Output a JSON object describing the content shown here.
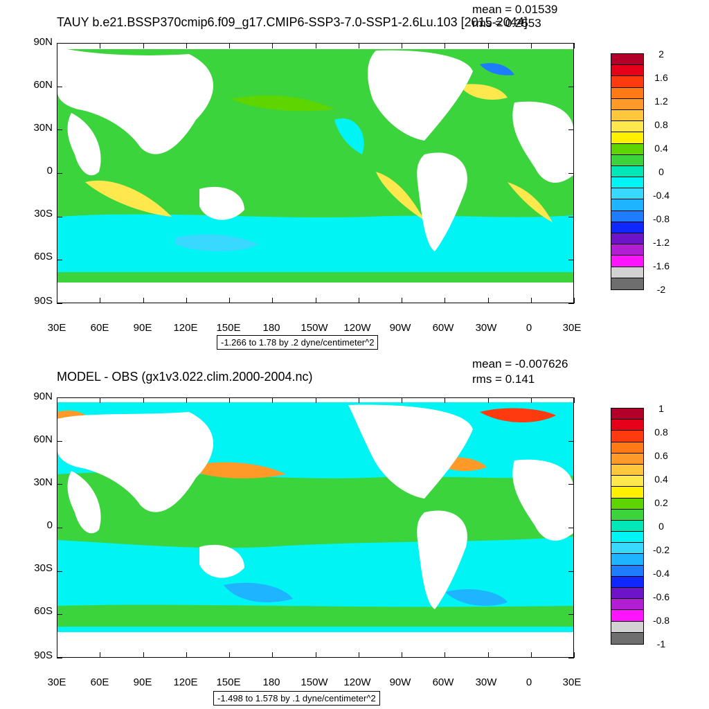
{
  "top": {
    "title": "TAUY b.e21.BSSP370cmip6.f09_g17.CMIP6-SSP3-7.0-SSP1-2.6Lu.103 [2015-2044]",
    "mean": "mean = 0.01539",
    "rms": "rms = 0.2553",
    "info": "-1.266 to 1.78 by .2 dyne/centimeter^2",
    "colorbar_labels": [
      "2",
      "1.6",
      "1.2",
      "0.8",
      "0.4",
      "0",
      "-0.4",
      "-0.8",
      "-1.2",
      "-1.6",
      "-2"
    ],
    "colorbar_colors": [
      "#b2002a",
      "#e6001a",
      "#ff3a0f",
      "#ff7a14",
      "#ff9a28",
      "#ffc83c",
      "#ffe84e",
      "#fff000",
      "#5ed400",
      "#3cd43c",
      "#00e8b8",
      "#00f4f4",
      "#38d8ff",
      "#1eb4ff",
      "#1e7cff",
      "#0f28ff",
      "#6e14c8",
      "#b21ed2",
      "#ff14ff",
      "#d2d2d2",
      "#6e6e6e"
    ]
  },
  "bottom": {
    "title": "MODEL - OBS (gx1v3.022.clim.2000-2004.nc)",
    "mean": "mean = -0.007626",
    "rms": "rms = 0.141",
    "info": "-1.498 to 1.578 by .1 dyne/centimeter^2",
    "colorbar_labels": [
      "1",
      "0.8",
      "0.6",
      "0.4",
      "0.2",
      "0",
      "-0.2",
      "-0.4",
      "-0.6",
      "-0.8",
      "-1"
    ],
    "colorbar_colors": [
      "#b2002a",
      "#e6001a",
      "#ff3a0f",
      "#ff7a14",
      "#ff9a28",
      "#ffc83c",
      "#ffe84e",
      "#fff000",
      "#5ed400",
      "#3cd43c",
      "#00e8b8",
      "#00f4f4",
      "#38d8ff",
      "#1eb4ff",
      "#1e7cff",
      "#0f28ff",
      "#6e14c8",
      "#b21ed2",
      "#ff14ff",
      "#d2d2d2",
      "#6e6e6e"
    ]
  },
  "axes": {
    "lat_labels": [
      "90N",
      "60N",
      "30N",
      "0",
      "30S",
      "60S",
      "90S"
    ],
    "lon_labels": [
      "30E",
      "60E",
      "90E",
      "120E",
      "150E",
      "180",
      "150W",
      "120W",
      "90W",
      "60W",
      "30W",
      "0",
      "30E"
    ]
  },
  "chart_data": [
    {
      "type": "heatmap",
      "title": "TAUY b.e21.BSSP370cmip6.f09_g17.CMIP6-SSP3-7.0-SSP1-2.6Lu.103 [2015-2044]",
      "mean": 0.01539,
      "rms": 0.2553,
      "range": [
        -1.266,
        1.78
      ],
      "contour_interval": 0.2,
      "units": "dyne/centimeter^2",
      "colorbar_range": [
        -2,
        2
      ],
      "colorbar_ticks": [
        2,
        1.6,
        1.2,
        0.8,
        0.4,
        0,
        -0.4,
        -0.8,
        -1.2,
        -1.6,
        -2
      ],
      "xlabel": "",
      "ylabel": "",
      "x_ticks": [
        "30E",
        "60E",
        "90E",
        "120E",
        "150E",
        "180",
        "150W",
        "120W",
        "90W",
        "60W",
        "30W",
        "0",
        "30E"
      ],
      "y_ticks": [
        "90N",
        "60N",
        "30N",
        "0",
        "30S",
        "60S",
        "90S"
      ]
    },
    {
      "type": "heatmap",
      "title": "MODEL - OBS (gx1v3.022.clim.2000-2004.nc)",
      "mean": -0.007626,
      "rms": 0.141,
      "range": [
        -1.498,
        1.578
      ],
      "contour_interval": 0.1,
      "units": "dyne/centimeter^2",
      "colorbar_range": [
        -1,
        1
      ],
      "colorbar_ticks": [
        1,
        0.8,
        0.6,
        0.4,
        0.2,
        0,
        -0.2,
        -0.4,
        -0.6,
        -0.8,
        -1
      ],
      "xlabel": "",
      "ylabel": "",
      "x_ticks": [
        "30E",
        "60E",
        "90E",
        "120E",
        "150E",
        "180",
        "150W",
        "120W",
        "90W",
        "60W",
        "30W",
        "0",
        "30E"
      ],
      "y_ticks": [
        "90N",
        "60N",
        "30N",
        "0",
        "30S",
        "60S",
        "90S"
      ]
    }
  ]
}
